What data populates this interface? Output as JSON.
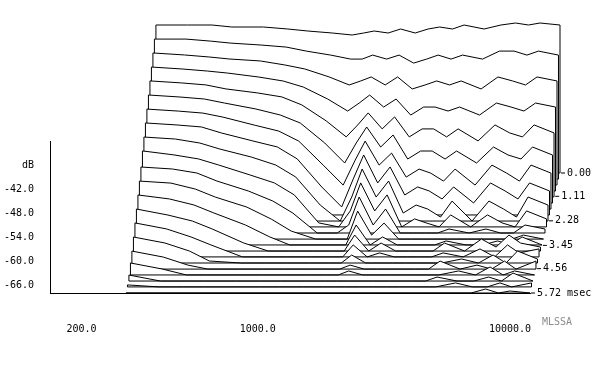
{
  "chart_data": {
    "type": "waterfall",
    "log": "x",
    "grid": false,
    "color": "#000000",
    "ylabel": "dB",
    "annotation": "MLSSA",
    "x": [
      300,
      400,
      500,
      600,
      800,
      1000,
      1200,
      1500,
      1800,
      2000,
      2200,
      2500,
      2800,
      3200,
      3600,
      4000,
      4500,
      5000,
      6000,
      7000,
      8000,
      9000,
      10000,
      12000
    ],
    "xlim": [
      150,
      12000
    ],
    "xticks": [
      {
        "value": 200,
        "label": "200.0"
      },
      {
        "value": 1000,
        "label": "1000.0"
      },
      {
        "value": 10000,
        "label": "10000.0"
      }
    ],
    "ylim": [
      -68,
      -30
    ],
    "yticks": [
      {
        "value": -42,
        "label": "-42.0"
      },
      {
        "value": -48,
        "label": "-48.0"
      },
      {
        "value": -54,
        "label": "-54.0"
      },
      {
        "value": -60,
        "label": "-60.0"
      },
      {
        "value": -66,
        "label": "-66.0"
      }
    ],
    "zlim": [
      0,
      5.72
    ],
    "zticks": [
      {
        "value": 0,
        "label": "0.00"
      },
      1.11,
      2.28,
      3.45,
      4.56,
      {
        "value": 5.72,
        "label": "5.72 msec"
      }
    ],
    "series": [
      {
        "time": 0,
        "values": [
          -31,
          -31,
          -31,
          -31.5,
          -31.5,
          -32,
          -32.5,
          -33,
          -33.5,
          -33,
          -32.5,
          -33,
          -32,
          -33,
          -32,
          -31.5,
          -32,
          -31,
          -32,
          -31,
          -30.5,
          -31,
          -30.5,
          -31
        ]
      },
      {
        "time": 0.29,
        "values": [
          -33,
          -33,
          -33.5,
          -34,
          -34.5,
          -35,
          -36,
          -37,
          -38,
          -38,
          -37,
          -38,
          -37,
          -39,
          -38,
          -37,
          -38,
          -37,
          -38,
          -36,
          -36,
          -37,
          -36,
          -37
        ]
      },
      {
        "time": 0.57,
        "values": [
          -35,
          -35.5,
          -36,
          -36.5,
          -37,
          -38,
          -39,
          -41,
          -43,
          -42,
          -41,
          -43,
          -41,
          -44,
          -43,
          -42,
          -43,
          -42,
          -44,
          -41,
          -42,
          -43,
          -41,
          -42
        ]
      },
      {
        "time": 0.86,
        "values": [
          -37,
          -37.5,
          -38,
          -38.5,
          -39.5,
          -40.5,
          -42,
          -45,
          -48,
          -46,
          -44,
          -47,
          -45,
          -49,
          -47,
          -47,
          -48,
          -47,
          -49,
          -46,
          -47,
          -48,
          -46,
          -47
        ]
      },
      {
        "time": 1.14,
        "values": [
          -39,
          -39.5,
          -40,
          -41,
          -42,
          -43,
          -45,
          -49,
          -53,
          -50,
          -47,
          -51,
          -48,
          -53,
          -51,
          -51,
          -53,
          -51,
          -54,
          -50,
          -52,
          -53,
          -50,
          -52
        ]
      },
      {
        "time": 1.43,
        "values": [
          -41,
          -41.5,
          -42,
          -43,
          -44.5,
          -46,
          -48,
          -53,
          -58,
          -53,
          -49,
          -54,
          -51,
          -57,
          -55,
          -55,
          -57,
          -55,
          -58,
          -54,
          -56,
          -57,
          -54,
          -56
        ]
      },
      {
        "time": 1.72,
        "values": [
          -43,
          -43.5,
          -44,
          -45,
          -47,
          -48.5,
          -51,
          -57,
          -62,
          -56,
          -51,
          -57,
          -54,
          -60,
          -58,
          -59,
          -61,
          -58,
          -62,
          -57,
          -59,
          -61,
          -57,
          -59
        ]
      },
      {
        "time": 2,
        "values": [
          -45,
          -45.5,
          -46,
          -47.5,
          -49.5,
          -51,
          -54,
          -61,
          -66,
          -59,
          -53,
          -60,
          -56,
          -63,
          -61,
          -62,
          -64,
          -61,
          -65,
          -60,
          -62,
          -64,
          -60,
          -62
        ]
      },
      {
        "time": 2.29,
        "values": [
          -47,
          -47.5,
          -48.5,
          -50,
          -52,
          -54,
          -57,
          -64,
          -68,
          -62,
          -55,
          -62,
          -58,
          -66,
          -64,
          -65,
          -67,
          -63,
          -68,
          -63,
          -65,
          -67,
          -62,
          -64
        ]
      },
      {
        "time": 2.57,
        "values": [
          -49,
          -50,
          -51,
          -52.5,
          -55,
          -57,
          -60,
          -67,
          -68,
          -64,
          -57,
          -64,
          -60,
          -68,
          -66,
          -67,
          -68,
          -65,
          -68,
          -65,
          -67,
          -68,
          -64,
          -66
        ]
      },
      {
        "time": 2.86,
        "values": [
          -51.5,
          -52,
          -53,
          -55,
          -57.5,
          -60,
          -63,
          -68,
          -68,
          -66,
          -59,
          -66,
          -62,
          -68,
          -68,
          -68,
          -68,
          -67,
          -68,
          -67,
          -68,
          -68,
          -66,
          -67
        ]
      },
      {
        "time": 3.15,
        "values": [
          -53.5,
          -54,
          -55.5,
          -57.5,
          -60,
          -63,
          -66,
          -68,
          -68,
          -68,
          -61,
          -67,
          -64,
          -68,
          -68,
          -68,
          -68,
          -68,
          -68,
          -68,
          -68,
          -68,
          -67,
          -68
        ]
      },
      {
        "time": 3.43,
        "values": [
          -55.5,
          -56.5,
          -58,
          -60,
          -63,
          -66,
          -68,
          -68,
          -68,
          -68,
          -63,
          -68,
          -66,
          -68,
          -68,
          -68,
          -68,
          -67,
          -68,
          -68,
          -67,
          -68,
          -66,
          -68
        ]
      },
      {
        "time": 3.72,
        "values": [
          -57.5,
          -59,
          -60.5,
          -62.5,
          -66,
          -68,
          -68,
          -68,
          -68,
          -68,
          -64,
          -68,
          -66,
          -68,
          -68,
          -68,
          -68,
          -66,
          -68,
          -65,
          -67,
          -64,
          -66,
          -67
        ]
      },
      {
        "time": 4,
        "values": [
          -59.5,
          -61,
          -63,
          -65,
          -68,
          -68,
          -68,
          -68,
          -68,
          -68,
          -65,
          -68,
          -67,
          -68,
          -68,
          -68,
          -68,
          -67,
          -68,
          -66,
          -68,
          -65,
          -67,
          -66
        ]
      },
      {
        "time": 4.29,
        "values": [
          -61.5,
          -63,
          -65,
          -67.5,
          -68,
          -68,
          -68,
          -68,
          -68,
          -68,
          -66,
          -68,
          -68,
          -68,
          -68,
          -68,
          -68,
          -68,
          -67,
          -68,
          -66,
          -68,
          -65,
          -67
        ]
      },
      {
        "time": 4.58,
        "values": [
          -63.5,
          -65,
          -67,
          -68,
          -68,
          -68,
          -68,
          -68,
          -68,
          -68,
          -67,
          -68,
          -68,
          -68,
          -68,
          -68,
          -68,
          -66,
          -68,
          -67,
          -68,
          -66,
          -68,
          -66
        ]
      },
      {
        "time": 4.86,
        "values": [
          -65,
          -66.5,
          -68,
          -68,
          -68,
          -68,
          -68,
          -68,
          -68,
          -68,
          -67,
          -68,
          -68,
          -68,
          -68,
          -68,
          -68,
          -68,
          -67,
          -68,
          -66,
          -68,
          -67,
          -68
        ]
      },
      {
        "time": 5.15,
        "values": [
          -66.5,
          -68,
          -68,
          -68,
          -68,
          -68,
          -68,
          -68,
          -68,
          -68,
          -68,
          -68,
          -68,
          -68,
          -68,
          -68,
          -68,
          -67,
          -68,
          -68,
          -67,
          -68,
          -66,
          -68
        ]
      },
      {
        "time": 5.43,
        "values": [
          -67.5,
          -68,
          -68,
          -68,
          -68,
          -68,
          -68,
          -68,
          -68,
          -68,
          -68,
          -68,
          -68,
          -68,
          -68,
          -68,
          -68,
          -68,
          -67,
          -68,
          -68,
          -67,
          -68,
          -67
        ]
      },
      {
        "time": 5.72,
        "values": [
          -68,
          -68,
          -68,
          -68,
          -68,
          -68,
          -68,
          -68,
          -68,
          -68,
          -68,
          -68,
          -68,
          -68,
          -68,
          -68,
          -68,
          -68,
          -68,
          -68,
          -67,
          -68,
          -67.5,
          -68
        ]
      }
    ]
  }
}
